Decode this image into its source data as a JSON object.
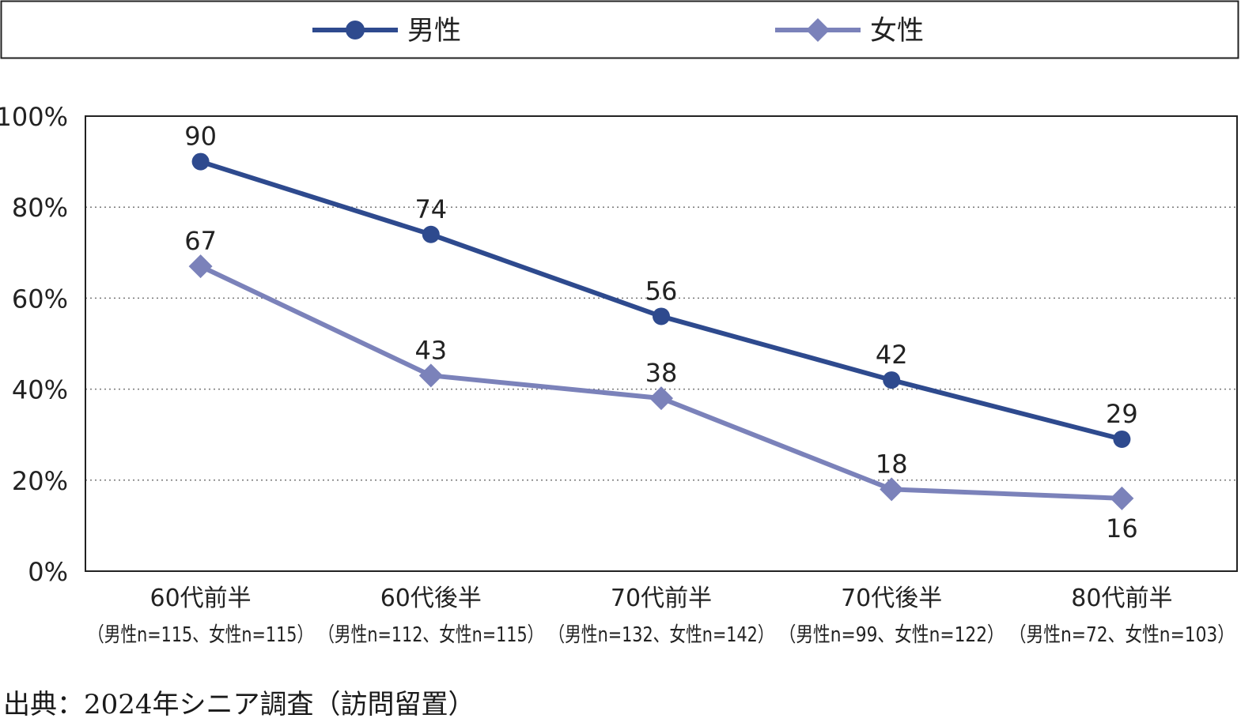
{
  "chart_data": {
    "type": "line",
    "categories": [
      "60代前半",
      "60代後半",
      "70代前半",
      "70代後半",
      "80代前半"
    ],
    "category_sublabels": [
      "（男性n=115、女性n=115）",
      "（男性n=112、女性n=115）",
      "（男性n=132、女性n=142）",
      "（男性n=99、女性n=122）",
      "（男性n=72、女性n=103）"
    ],
    "series": [
      {
        "name": "男性",
        "values": [
          90,
          74,
          56,
          42,
          29
        ],
        "color": "#2e4a8e",
        "marker": "circle"
      },
      {
        "name": "女性",
        "values": [
          67,
          43,
          38,
          18,
          16
        ],
        "color": "#7b82ba",
        "marker": "diamond"
      }
    ],
    "y_ticks": [
      "0%",
      "20%",
      "40%",
      "60%",
      "80%",
      "100%"
    ],
    "ylim": [
      0,
      100
    ],
    "grid": "horizontal-dotted",
    "legend_position": "top"
  },
  "source": "出典：2024年シニア調査（訪問留置）"
}
